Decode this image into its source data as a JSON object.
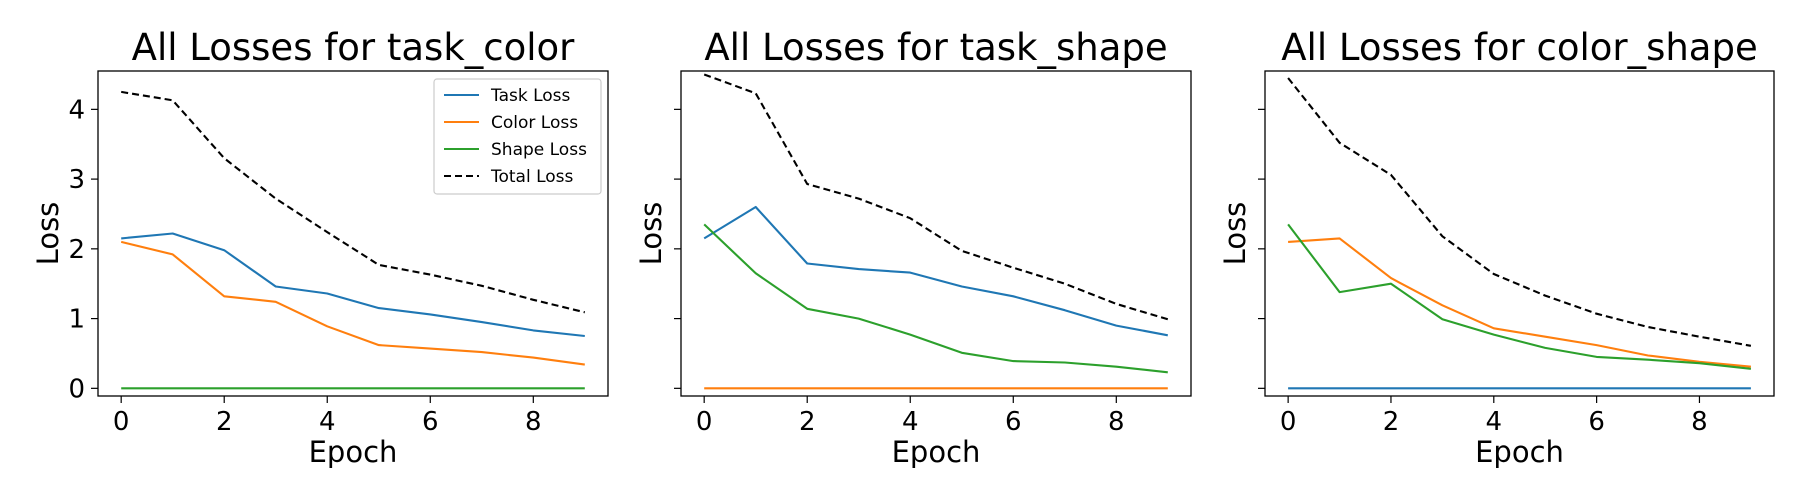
{
  "chart_data": [
    {
      "type": "line",
      "title": "All Losses for task_color",
      "xlabel": "Epoch",
      "ylabel": "Loss",
      "xlim": [
        -0.45,
        9.45
      ],
      "ylim": [
        -0.11,
        4.55
      ],
      "x": [
        0,
        1,
        2,
        3,
        4,
        5,
        6,
        7,
        8,
        9
      ],
      "xticks": [
        0,
        2,
        4,
        6,
        8
      ],
      "yticks": [
        0,
        1,
        2,
        3,
        4
      ],
      "show_ytick_labels": true,
      "legend": "top-right",
      "series": [
        {
          "name": "Task Loss",
          "color": "#1f77b4",
          "dash": "solid",
          "values": [
            2.15,
            2.22,
            1.98,
            1.46,
            1.36,
            1.15,
            1.06,
            0.95,
            0.83,
            0.75
          ]
        },
        {
          "name": "Color Loss",
          "color": "#ff7f0e",
          "dash": "solid",
          "values": [
            2.1,
            1.92,
            1.32,
            1.24,
            0.89,
            0.62,
            0.57,
            0.52,
            0.44,
            0.34
          ]
        },
        {
          "name": "Shape Loss",
          "color": "#2ca02c",
          "dash": "solid",
          "values": [
            0,
            0,
            0,
            0,
            0,
            0,
            0,
            0,
            0,
            0
          ]
        },
        {
          "name": "Total Loss",
          "color": "#000000",
          "dash": "dashed",
          "values": [
            4.25,
            4.13,
            3.3,
            2.72,
            2.24,
            1.77,
            1.63,
            1.47,
            1.27,
            1.09
          ]
        }
      ]
    },
    {
      "type": "line",
      "title": "All Losses for task_shape",
      "xlabel": "Epoch",
      "ylabel": "Loss",
      "xlim": [
        -0.45,
        9.45
      ],
      "ylim": [
        -0.11,
        4.55
      ],
      "x": [
        0,
        1,
        2,
        3,
        4,
        5,
        6,
        7,
        8,
        9
      ],
      "xticks": [
        0,
        2,
        4,
        6,
        8
      ],
      "yticks": [
        0,
        1,
        2,
        3,
        4
      ],
      "show_ytick_labels": false,
      "series": [
        {
          "color": "#1f77b4",
          "dash": "solid",
          "values": [
            2.15,
            2.6,
            1.79,
            1.71,
            1.66,
            1.46,
            1.32,
            1.12,
            0.9,
            0.76
          ]
        },
        {
          "color": "#ff7f0e",
          "dash": "solid",
          "values": [
            0,
            0,
            0,
            0,
            0,
            0,
            0,
            0,
            0,
            0
          ]
        },
        {
          "color": "#2ca02c",
          "dash": "solid",
          "values": [
            2.35,
            1.65,
            1.14,
            1.0,
            0.77,
            0.51,
            0.39,
            0.37,
            0.31,
            0.23
          ]
        },
        {
          "color": "#000000",
          "dash": "dashed",
          "values": [
            4.5,
            4.23,
            2.93,
            2.72,
            2.44,
            1.97,
            1.73,
            1.5,
            1.21,
            0.99
          ]
        }
      ]
    },
    {
      "type": "line",
      "title": "All Losses for color_shape",
      "xlabel": "Epoch",
      "ylabel": "Loss",
      "xlim": [
        -0.45,
        9.45
      ],
      "ylim": [
        -0.11,
        4.55
      ],
      "x": [
        0,
        1,
        2,
        3,
        4,
        5,
        6,
        7,
        8,
        9
      ],
      "xticks": [
        0,
        2,
        4,
        6,
        8
      ],
      "yticks": [
        0,
        1,
        2,
        3,
        4
      ],
      "show_ytick_labels": false,
      "series": [
        {
          "color": "#1f77b4",
          "dash": "solid",
          "values": [
            0,
            0,
            0,
            0,
            0,
            0,
            0,
            0,
            0,
            0
          ]
        },
        {
          "color": "#ff7f0e",
          "dash": "solid",
          "values": [
            2.1,
            2.15,
            1.58,
            1.19,
            0.86,
            0.74,
            0.62,
            0.47,
            0.38,
            0.31
          ]
        },
        {
          "color": "#2ca02c",
          "dash": "solid",
          "values": [
            2.35,
            1.38,
            1.5,
            0.99,
            0.77,
            0.58,
            0.45,
            0.41,
            0.36,
            0.28
          ]
        },
        {
          "color": "#000000",
          "dash": "dashed",
          "values": [
            4.45,
            3.52,
            3.06,
            2.18,
            1.64,
            1.33,
            1.07,
            0.88,
            0.74,
            0.61
          ]
        }
      ]
    }
  ]
}
